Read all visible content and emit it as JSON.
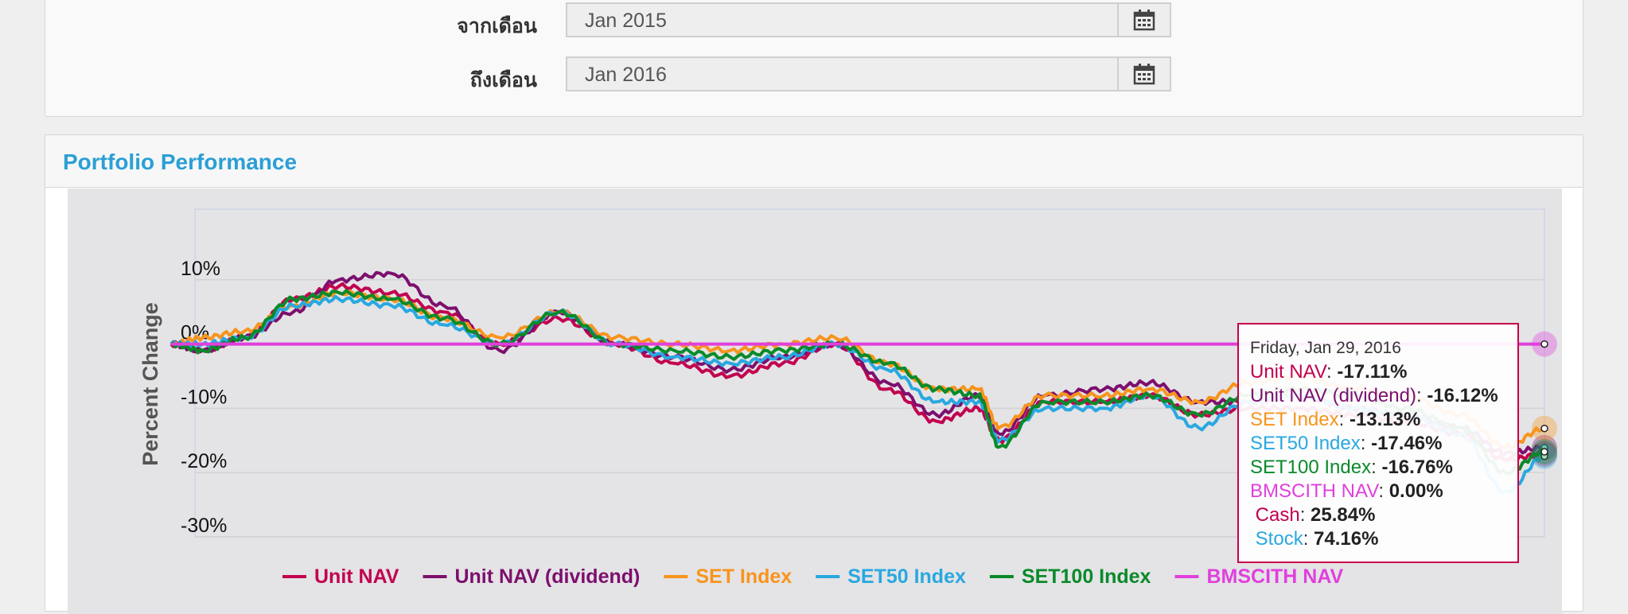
{
  "filters": {
    "from": {
      "label": "จากเดือน",
      "value": "Jan 2015"
    },
    "to": {
      "label": "ถึงเดือน",
      "value": "Jan 2016"
    }
  },
  "panel": {
    "title": "Portfolio Performance"
  },
  "icons": {
    "calendar": "calendar-icon"
  },
  "chart_data": {
    "type": "line",
    "ylabel": "Percent Change",
    "yticks": [
      "10%",
      "0%",
      "-10%",
      "-20%",
      "-30%"
    ],
    "ylim": [
      -30,
      20
    ],
    "xlim": [
      "2015-01-01",
      "2016-01-29"
    ],
    "legend_position": "bottom",
    "series": [
      {
        "name": "Unit NAV",
        "color": "#c2004f",
        "x": [
          "2015-01-01",
          "2015-01-10",
          "2015-01-22",
          "2015-02-05",
          "2015-02-18",
          "2015-03-05",
          "2015-03-20",
          "2015-04-05",
          "2015-04-22",
          "2015-05-08",
          "2015-05-25",
          "2015-06-10",
          "2015-06-25",
          "2015-07-10",
          "2015-07-25",
          "2015-08-08",
          "2015-08-20",
          "2015-08-26",
          "2015-09-08",
          "2015-09-25",
          "2015-10-08",
          "2015-10-22",
          "2015-11-05",
          "2015-11-20",
          "2015-12-05",
          "2015-12-20",
          "2016-01-05",
          "2016-01-18",
          "2016-01-29"
        ],
        "y": [
          0,
          -1,
          1,
          7,
          9,
          8,
          5,
          0,
          4,
          0,
          -3,
          -5,
          -3,
          0,
          -7,
          -12,
          -10,
          -15,
          -9,
          -9,
          -8,
          -11,
          -10,
          -10,
          -11,
          -12,
          -14,
          -18,
          -17.11
        ]
      },
      {
        "name": "Unit NAV (dividend)",
        "color": "#7d0f6e",
        "x": [
          "2015-01-01",
          "2015-01-10",
          "2015-01-22",
          "2015-02-05",
          "2015-02-18",
          "2015-03-05",
          "2015-03-20",
          "2015-04-05",
          "2015-04-22",
          "2015-05-08",
          "2015-05-25",
          "2015-06-10",
          "2015-06-25",
          "2015-07-10",
          "2015-07-25",
          "2015-08-08",
          "2015-08-20",
          "2015-08-26",
          "2015-09-08",
          "2015-09-25",
          "2015-10-08",
          "2015-10-22",
          "2015-11-05",
          "2015-11-20",
          "2015-12-05",
          "2015-12-20",
          "2016-01-05",
          "2016-01-18",
          "2016-01-29"
        ],
        "y": [
          0,
          -1,
          1,
          5,
          10,
          11,
          6,
          -1,
          5,
          0,
          -2,
          -4,
          -2,
          0,
          -6,
          -11,
          -8,
          -14,
          -8,
          -7,
          -6,
          -9,
          -9,
          -8,
          -10,
          -11,
          -13,
          -17,
          -16.12
        ]
      },
      {
        "name": "SET Index",
        "color": "#f7941d",
        "x": [
          "2015-01-01",
          "2015-01-10",
          "2015-01-22",
          "2015-02-05",
          "2015-02-18",
          "2015-03-05",
          "2015-03-20",
          "2015-04-05",
          "2015-04-22",
          "2015-05-08",
          "2015-05-25",
          "2015-06-10",
          "2015-06-25",
          "2015-07-10",
          "2015-07-25",
          "2015-08-08",
          "2015-08-20",
          "2015-08-26",
          "2015-09-08",
          "2015-09-25",
          "2015-10-08",
          "2015-10-22",
          "2015-11-05",
          "2015-11-20",
          "2015-12-05",
          "2015-12-20",
          "2016-01-05",
          "2016-01-18",
          "2016-01-29"
        ],
        "y": [
          0,
          1,
          2,
          6,
          8,
          7,
          4,
          1,
          5,
          1,
          0,
          -1,
          0,
          1,
          -3,
          -7,
          -7,
          -13,
          -8,
          -8,
          -7,
          -9,
          -6,
          -5,
          -7,
          -8,
          -11,
          -16,
          -13.13
        ]
      },
      {
        "name": "SET50 Index",
        "color": "#29a8e0",
        "x": [
          "2015-01-01",
          "2015-01-10",
          "2015-01-22",
          "2015-02-05",
          "2015-02-18",
          "2015-03-05",
          "2015-03-20",
          "2015-04-05",
          "2015-04-22",
          "2015-05-08",
          "2015-05-25",
          "2015-06-10",
          "2015-06-25",
          "2015-07-10",
          "2015-07-25",
          "2015-08-08",
          "2015-08-20",
          "2015-08-26",
          "2015-09-08",
          "2015-09-25",
          "2015-10-08",
          "2015-10-22",
          "2015-11-05",
          "2015-11-20",
          "2015-12-05",
          "2015-12-20",
          "2016-01-05",
          "2016-01-18",
          "2016-01-29"
        ],
        "y": [
          0,
          0,
          1,
          6,
          7,
          6,
          3,
          0,
          5,
          0,
          -2,
          -3,
          -2,
          0,
          -4,
          -9,
          -9,
          -15,
          -10,
          -10,
          -8,
          -13,
          -9,
          -8,
          -10,
          -11,
          -14,
          -23,
          -17.46
        ]
      },
      {
        "name": "SET100 Index",
        "color": "#0a8a2a",
        "x": [
          "2015-01-01",
          "2015-01-10",
          "2015-01-22",
          "2015-02-05",
          "2015-02-18",
          "2015-03-05",
          "2015-03-20",
          "2015-04-05",
          "2015-04-22",
          "2015-05-08",
          "2015-05-25",
          "2015-06-10",
          "2015-06-25",
          "2015-07-10",
          "2015-07-25",
          "2015-08-08",
          "2015-08-20",
          "2015-08-26",
          "2015-09-08",
          "2015-09-25",
          "2015-10-08",
          "2015-10-22",
          "2015-11-05",
          "2015-11-20",
          "2015-12-05",
          "2015-12-20",
          "2016-01-05",
          "2016-01-18",
          "2016-01-29"
        ],
        "y": [
          0,
          -1,
          1,
          7,
          8,
          7,
          4,
          0,
          5,
          0,
          -1,
          -2,
          -1,
          0,
          -3,
          -7,
          -8,
          -16,
          -9,
          -9,
          -8,
          -11,
          -8,
          -7,
          -8,
          -10,
          -13,
          -20,
          -16.76
        ]
      },
      {
        "name": "BMSCITH NAV",
        "color": "#e040dc",
        "x": [
          "2015-01-01",
          "2016-01-29"
        ],
        "y": [
          0,
          0
        ]
      }
    ]
  },
  "tooltip": {
    "date": "Friday, Jan 29, 2016",
    "rows": [
      {
        "name": "Unit NAV",
        "value": "-17.11%",
        "color": "#c2004f"
      },
      {
        "name": "Unit NAV (dividend)",
        "value": "-16.12%",
        "color": "#7d0f6e"
      },
      {
        "name": "SET Index",
        "value": "-13.13%",
        "color": "#f7941d"
      },
      {
        "name": "SET50 Index",
        "value": "-17.46%",
        "color": "#29a8e0"
      },
      {
        "name": "SET100 Index",
        "value": "-16.76%",
        "color": "#0a8a2a"
      },
      {
        "name": "BMSCITH NAV",
        "value": "0.00%",
        "color": "#e040dc"
      },
      {
        "name": " Cash",
        "value": "25.84%",
        "color": "#c2004f"
      },
      {
        "name": " Stock",
        "value": "74.16%",
        "color": "#29a8e0"
      }
    ]
  }
}
